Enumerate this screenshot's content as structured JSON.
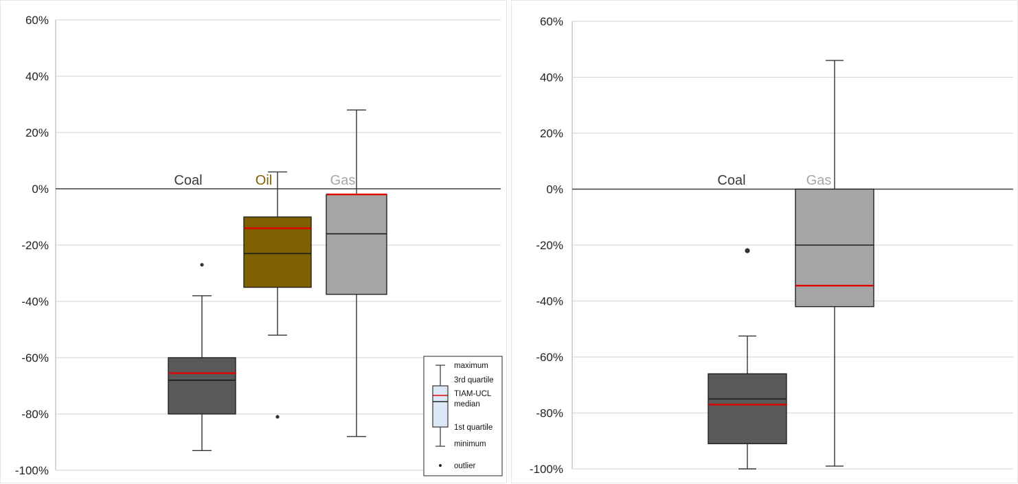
{
  "chart_data": [
    {
      "type": "box",
      "ylim": [
        -100,
        60
      ],
      "y_ticks": [
        60,
        40,
        20,
        0,
        -20,
        -40,
        -60,
        -80,
        -100
      ],
      "y_tick_labels": [
        "60%",
        "40%",
        "20%",
        "0%",
        "-20%",
        "-40%",
        "-60%",
        "-80%",
        "-100%"
      ],
      "grid": true,
      "series": [
        {
          "name": "Coal",
          "min": -93,
          "q1": -80,
          "median": -68,
          "q3": -60,
          "max": -38,
          "tiam_ucl": -65.5,
          "outliers": [
            -27
          ],
          "fill": "#595959",
          "label_color": "#3a3a3a"
        },
        {
          "name": "Oil",
          "min": -52,
          "q1": -35,
          "median": -23,
          "q3": -10,
          "max": 6,
          "tiam_ucl": -14,
          "outliers": [
            -81
          ],
          "fill": "#7f6000",
          "label_color": "#7f6000"
        },
        {
          "name": "Gas",
          "min": -88,
          "q1": -37.5,
          "median": -16,
          "q3": -2,
          "max": 28,
          "tiam_ucl": -2,
          "outliers": [],
          "fill": "#a6a6a6",
          "label_color": "#a6a6a6"
        }
      ],
      "legend": {
        "position": "bottom-right",
        "items": [
          "maximum",
          "3rd quartile",
          "TIAM-UCL",
          "median",
          "1st quartile",
          "minimum",
          "outlier"
        ],
        "tiam_color": "#e00000"
      }
    },
    {
      "type": "box",
      "ylim": [
        -100,
        60
      ],
      "y_ticks": [
        60,
        40,
        20,
        0,
        -20,
        -40,
        -60,
        -80,
        -100
      ],
      "y_tick_labels": [
        "60%",
        "40%",
        "20%",
        "0%",
        "-20%",
        "-40%",
        "-60%",
        "-80%",
        "-100%"
      ],
      "grid": true,
      "series": [
        {
          "name": "Coal",
          "min": -100,
          "q1": -91,
          "median": -75,
          "q3": -66,
          "max": -52.5,
          "tiam_ucl": -77,
          "outliers": [
            -22
          ],
          "fill": "#595959",
          "label_color": "#3a3a3a"
        },
        {
          "name": "Gas",
          "min": -99,
          "q1": -42,
          "median": -20,
          "q3": 0,
          "max": 46,
          "tiam_ucl": -34.5,
          "outliers": [],
          "fill": "#a6a6a6",
          "label_color": "#a6a6a6"
        }
      ]
    }
  ]
}
